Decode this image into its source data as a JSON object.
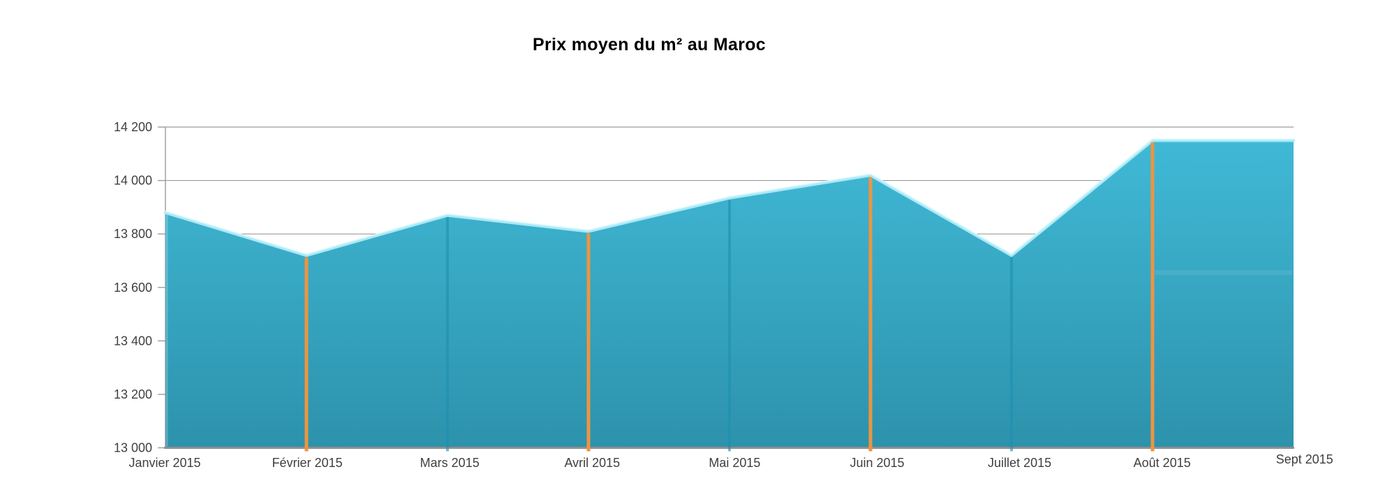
{
  "chart_data": {
    "type": "area",
    "title": "Prix moyen du m² au Maroc",
    "xlabel": "",
    "ylabel": "",
    "categories": [
      "Janvier 2015",
      "Février 2015",
      "Mars 2015",
      "Avril 2015",
      "Mai 2015",
      "Juin 2015",
      "Juillet 2015",
      "Août 2015",
      "Sept 2015"
    ],
    "values": [
      13880,
      13720,
      13870,
      13810,
      13935,
      14020,
      13720,
      14150,
      14150
    ],
    "ylim": [
      13000,
      14200
    ],
    "y_ticks": [
      {
        "value": 13000,
        "label": "13 000"
      },
      {
        "value": 13200,
        "label": "13 200"
      },
      {
        "value": 13400,
        "label": "13 400"
      },
      {
        "value": 13600,
        "label": "13 600"
      },
      {
        "value": 13800,
        "label": "13 800"
      },
      {
        "value": 14000,
        "label": "14 000"
      },
      {
        "value": 14200,
        "label": "14 200"
      }
    ],
    "grid": true,
    "legend": false,
    "drop_lines": [
      {
        "index": 1,
        "category": "Février 2015",
        "color_key": "orange"
      },
      {
        "index": 2,
        "category": "Mars 2015",
        "color_key": "teal"
      },
      {
        "index": 3,
        "category": "Avril 2015",
        "color_key": "orange"
      },
      {
        "index": 4,
        "category": "Mai 2015",
        "color_key": "teal"
      },
      {
        "index": 5,
        "category": "Juin 2015",
        "color_key": "orange"
      },
      {
        "index": 6,
        "category": "Juillet 2015",
        "color_key": "teal"
      },
      {
        "index": 7,
        "category": "Août 2015",
        "color_key": "orange"
      }
    ],
    "colors": {
      "area_top": "#40b9d6",
      "area_bottom": "#2d92ac",
      "edge_highlight": "#a9e9f6",
      "edge_highlight_bright": "#dcf8fd",
      "orange": "#ed9440",
      "teal": "#1d91b0",
      "grid": "#9b9b9b",
      "axis": "#9b9b9b",
      "baseline": "#8f8f8f",
      "label": "#3f3f3f",
      "title": "#000000",
      "background": "#ffffff"
    }
  }
}
